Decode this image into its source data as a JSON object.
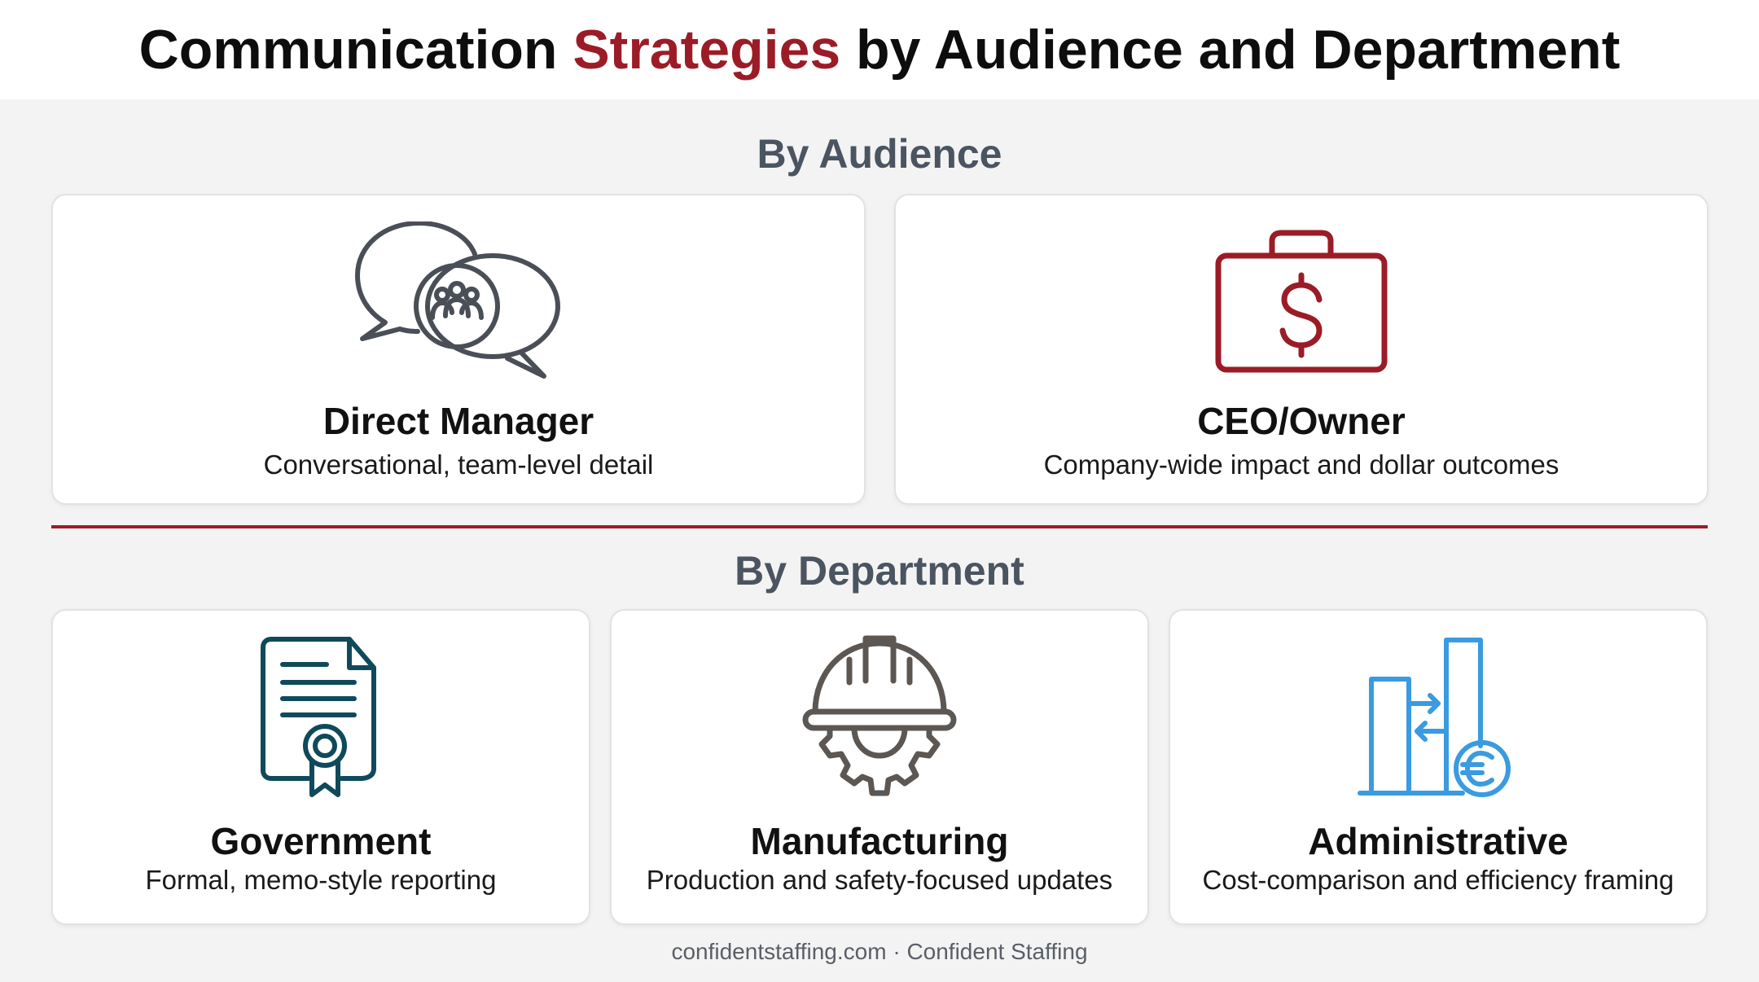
{
  "header": {
    "title_part1": "Communication ",
    "title_accent": "Strategies",
    "title_part2": " by Audience and Department"
  },
  "sections": {
    "audience_title": "By Audience",
    "department_title": "By Department"
  },
  "audience_cards": [
    {
      "icon": "chat-bubbles-people-icon",
      "title": "Direct Manager",
      "description": "Conversational, team-level detail"
    },
    {
      "icon": "briefcase-dollar-icon",
      "title": "CEO/Owner",
      "description": "Company-wide impact and dollar outcomes"
    }
  ],
  "department_cards": [
    {
      "icon": "certificate-document-icon",
      "title": "Government",
      "description": "Formal, memo-style reporting"
    },
    {
      "icon": "hard-hat-gear-icon",
      "title": "Manufacturing",
      "description": "Production and safety-focused updates"
    },
    {
      "icon": "bar-chart-euro-icon",
      "title": "Administrative",
      "description": "Cost-comparison and efficiency framing"
    }
  ],
  "footer": {
    "text": "confidentstaffing.com · Confident Staffing"
  },
  "colors": {
    "accent": "#9b1c26",
    "section_title": "#4b5461",
    "chat_icon": "#4a4f57",
    "briefcase_icon": "#9b1c26",
    "certificate_icon": "#0f4a5a",
    "hardhat_icon": "#5c5752",
    "chart_icon": "#3a9be0"
  }
}
